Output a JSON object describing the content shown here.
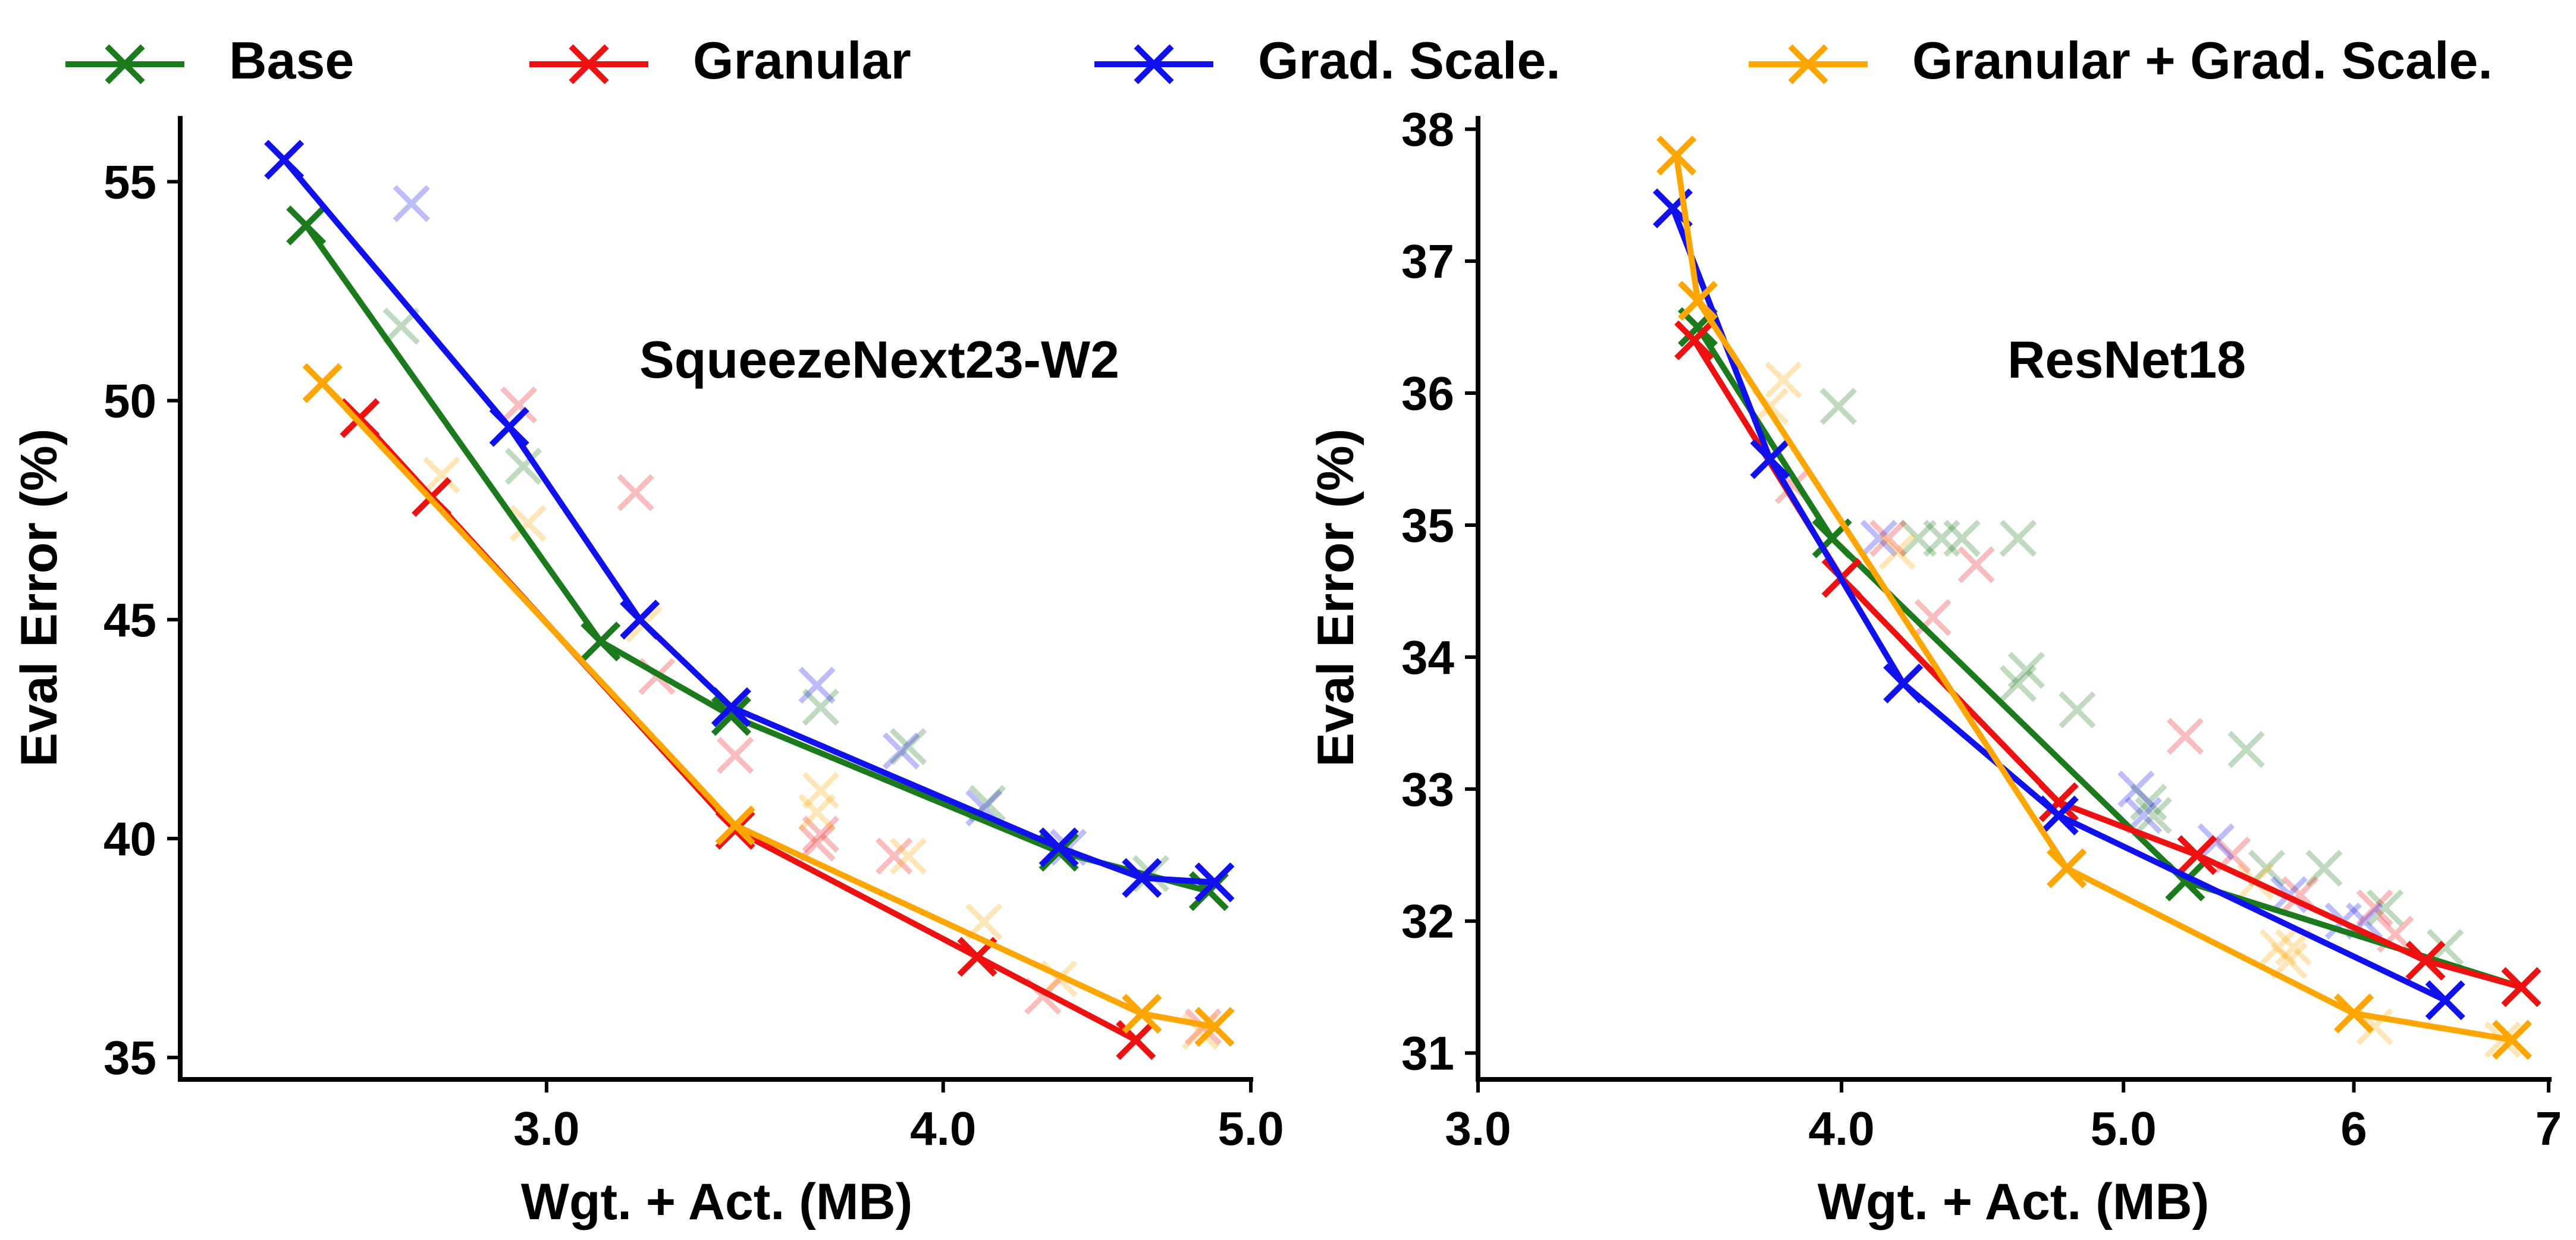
{
  "legend": [
    {
      "label": "Base",
      "color": "#1b7a1b"
    },
    {
      "label": "Granular",
      "color": "#ee1111"
    },
    {
      "label": "Grad. Scale.",
      "color": "#1111ee"
    },
    {
      "label": "Granular + Grad. Scale.",
      "color": "#ffa500"
    }
  ],
  "chart_data": [
    {
      "type": "line",
      "title": "SqueezeNext23-W2",
      "xlabel": "Wgt. + Act. (MB)",
      "ylabel": "Eval Error (%)",
      "xscale": "log",
      "xlim": [
        2.3,
        5.0
      ],
      "ylim": [
        34.5,
        56.5
      ],
      "xticks": [
        3.0,
        4.0,
        5.0
      ],
      "xtick_labels": [
        "3.0",
        "4.0",
        "5.0"
      ],
      "yticks": [
        35,
        40,
        45,
        50,
        55
      ],
      "ytick_labels": [
        "35",
        "40",
        "45",
        "50",
        "55"
      ],
      "series": [
        {
          "name": "Base",
          "color": "#1b7a1b",
          "pareto": [
            [
              2.52,
              54.0
            ],
            [
              3.12,
              44.5
            ],
            [
              3.43,
              42.8
            ],
            [
              4.35,
              39.7
            ],
            [
              4.85,
              38.8
            ]
          ],
          "other": [
            [
              2.7,
              51.7
            ],
            [
              2.95,
              48.5
            ],
            [
              3.66,
              43.0
            ],
            [
              3.9,
              42.1
            ],
            [
              4.13,
              40.8
            ],
            [
              4.65,
              39.2
            ]
          ]
        },
        {
          "name": "Granular",
          "color": "#ee1111",
          "pareto": [
            [
              2.62,
              49.6
            ],
            [
              2.76,
              47.8
            ],
            [
              3.44,
              40.2
            ],
            [
              4.1,
              37.3
            ],
            [
              4.6,
              35.4
            ]
          ],
          "other": [
            [
              2.94,
              49.9
            ],
            [
              3.2,
              47.9
            ],
            [
              3.25,
              43.7
            ],
            [
              3.44,
              41.9
            ],
            [
              3.66,
              40.1
            ],
            [
              3.65,
              39.9
            ],
            [
              3.86,
              39.6
            ],
            [
              4.3,
              36.4
            ],
            [
              4.83,
              35.7
            ]
          ]
        },
        {
          "name": "Grad. Scale.",
          "color": "#1111ee",
          "pareto": [
            [
              2.48,
              55.5
            ],
            [
              2.92,
              49.4
            ],
            [
              3.21,
              45.0
            ],
            [
              3.43,
              43.0
            ],
            [
              4.35,
              39.8
            ],
            [
              4.62,
              39.1
            ],
            [
              4.87,
              39.0
            ]
          ],
          "other": [
            [
              2.72,
              54.5
            ],
            [
              3.65,
              43.5
            ],
            [
              3.88,
              42.0
            ],
            [
              4.12,
              40.7
            ],
            [
              4.38,
              39.8
            ]
          ]
        },
        {
          "name": "Granular + Grad. Scale.",
          "color": "#ffa500",
          "pareto": [
            [
              2.55,
              50.4
            ],
            [
              3.44,
              40.3
            ],
            [
              4.62,
              36.0
            ],
            [
              4.87,
              35.7
            ]
          ],
          "other": [
            [
              2.78,
              48.3
            ],
            [
              2.96,
              47.2
            ],
            [
              3.22,
              44.9
            ],
            [
              3.66,
              41.1
            ],
            [
              3.65,
              40.6
            ],
            [
              3.9,
              39.6
            ],
            [
              4.12,
              38.1
            ],
            [
              4.35,
              36.8
            ],
            [
              4.82,
              35.6
            ]
          ]
        }
      ]
    },
    {
      "type": "line",
      "title": "ResNet18",
      "xlabel": "Wgt. + Act. (MB)",
      "ylabel": "Eval Error (%)",
      "xscale": "log",
      "xlim": [
        3.0,
        7.0
      ],
      "ylim": [
        30.8,
        38.1
      ],
      "xticks": [
        3.0,
        4.0,
        5.0,
        6.0,
        7.0
      ],
      "xtick_labels": [
        "3.0",
        "4.0",
        "5.0",
        "6",
        "7"
      ],
      "yticks": [
        31,
        32,
        33,
        34,
        35,
        36,
        37,
        38
      ],
      "ytick_labels": [
        "31",
        "32",
        "33",
        "34",
        "35",
        "36",
        "37",
        "38"
      ],
      "series": [
        {
          "name": "Base",
          "color": "#1b7a1b",
          "pareto": [
            [
              3.57,
              36.5
            ],
            [
              3.97,
              34.9
            ],
            [
              5.25,
              32.3
            ],
            [
              6.85,
              31.5
            ]
          ],
          "other": [
            [
              3.99,
              35.9
            ],
            [
              4.25,
              34.9
            ],
            [
              4.33,
              34.9
            ],
            [
              4.4,
              34.9
            ],
            [
              4.6,
              34.9
            ],
            [
              4.6,
              33.8
            ],
            [
              4.63,
              33.9
            ],
            [
              4.82,
              33.6
            ],
            [
              5.1,
              32.9
            ],
            [
              5.12,
              32.8
            ],
            [
              5.51,
              33.3
            ],
            [
              5.6,
              32.4
            ],
            [
              5.86,
              32.4
            ],
            [
              6.15,
              32.1
            ],
            [
              6.45,
              31.8
            ]
          ]
        },
        {
          "name": "Granular",
          "color": "#ee1111",
          "pareto": [
            [
              3.56,
              36.4
            ],
            [
              4.0,
              34.6
            ],
            [
              4.75,
              32.9
            ],
            [
              5.3,
              32.5
            ],
            [
              6.35,
              31.7
            ],
            [
              6.85,
              31.5
            ]
          ],
          "other": [
            [
              3.85,
              35.3
            ],
            [
              4.15,
              34.9
            ],
            [
              4.3,
              34.3
            ],
            [
              4.45,
              34.7
            ],
            [
              5.25,
              33.4
            ],
            [
              5.45,
              32.5
            ],
            [
              5.75,
              32.2
            ],
            [
              6.1,
              32.1
            ],
            [
              6.2,
              31.9
            ]
          ]
        },
        {
          "name": "Grad. Scale.",
          "color": "#1111ee",
          "pareto": [
            [
              3.5,
              37.4
            ],
            [
              3.78,
              35.5
            ],
            [
              4.2,
              33.8
            ],
            [
              4.75,
              32.8
            ],
            [
              6.45,
              31.4
            ]
          ],
          "other": [
            [
              4.12,
              34.9
            ],
            [
              5.05,
              33.0
            ],
            [
              5.08,
              32.8
            ],
            [
              5.38,
              32.6
            ],
            [
              5.7,
              32.2
            ],
            [
              5.95,
              32.0
            ],
            [
              6.05,
              32.0
            ]
          ]
        },
        {
          "name": "Granular + Grad. Scale.",
          "color": "#ffa500",
          "pareto": [
            [
              3.51,
              37.8
            ],
            [
              3.57,
              36.7
            ],
            [
              4.78,
              32.4
            ],
            [
              6.0,
              31.3
            ],
            [
              6.8,
              31.1
            ]
          ],
          "other": [
            [
              3.82,
              36.1
            ],
            [
              3.78,
              35.9
            ],
            [
              4.18,
              34.8
            ],
            [
              5.55,
              32.3
            ],
            [
              5.65,
              31.8
            ],
            [
              5.7,
              31.7
            ],
            [
              5.72,
              31.8
            ],
            [
              6.1,
              31.2
            ],
            [
              6.75,
              31.1
            ]
          ]
        }
      ]
    }
  ]
}
